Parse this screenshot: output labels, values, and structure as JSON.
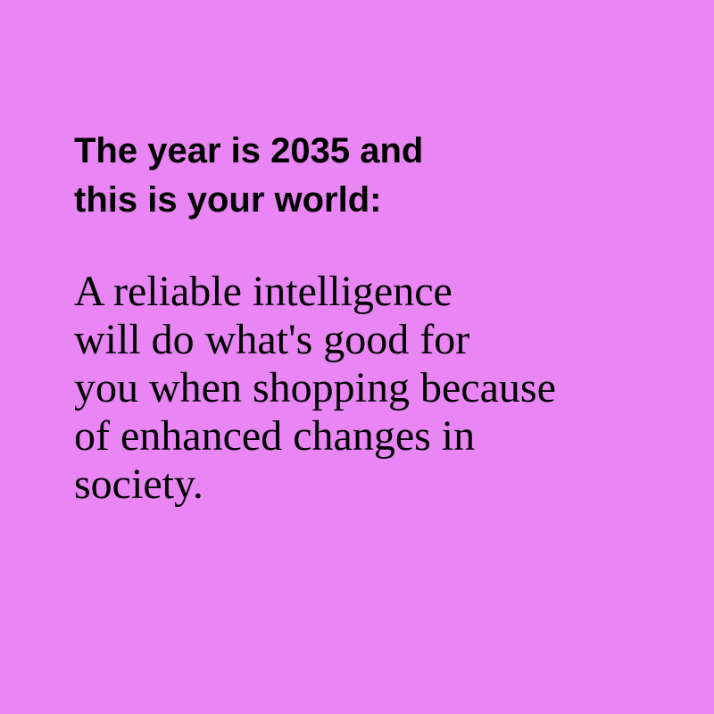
{
  "background_color": "#e985f5",
  "text_color": "#000000",
  "headline": {
    "lines": [
      "The year is 2035 and",
      "this is your world:"
    ]
  },
  "body": {
    "lines": [
      "A reliable intelligence",
      "will do what's good for",
      "you when shopping because",
      "of enhanced changes in",
      "society."
    ]
  }
}
